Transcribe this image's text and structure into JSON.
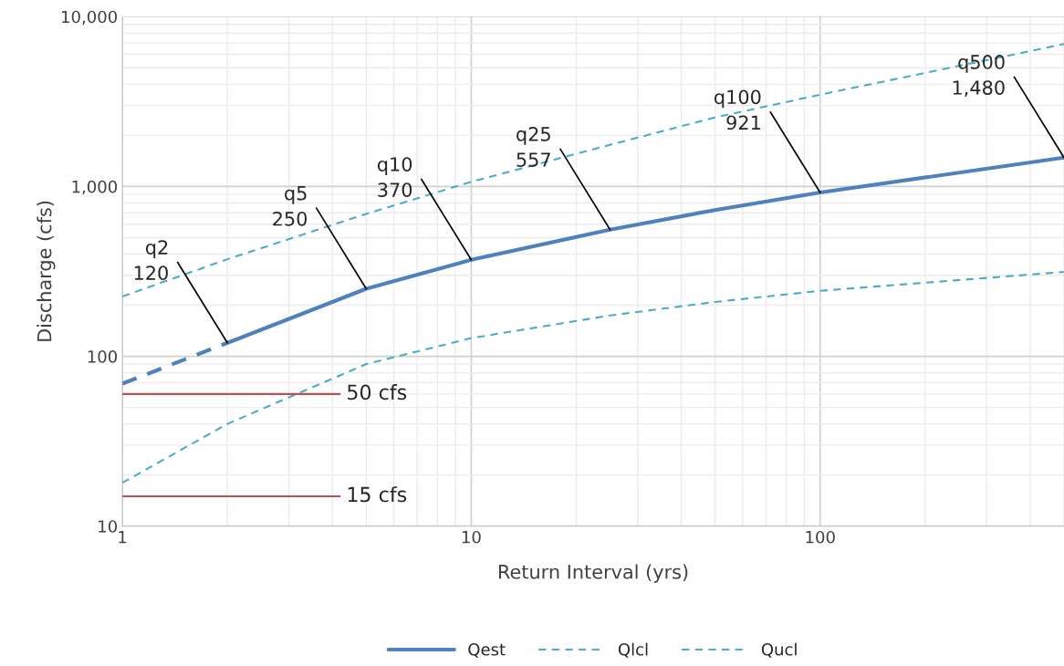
{
  "chart_data": {
    "type": "line",
    "xlabel": "Return Interval (yrs)",
    "ylabel": "Discharge (cfs)",
    "log": "xy",
    "xlim": [
      1,
      500
    ],
    "xticks": [
      1,
      10,
      100
    ],
    "ylim": [
      10,
      10000
    ],
    "yticks": [
      10,
      100,
      {
        "value": 1000,
        "label": "1,000"
      },
      {
        "value": 10000,
        "label": "10,000"
      }
    ],
    "grid": true,
    "legend": "bottom",
    "series": [
      {
        "name": "Qest",
        "color": "#4f81bd",
        "line_style": "solid",
        "x": [
          2,
          5,
          10,
          25,
          50,
          100,
          500
        ],
        "values": [
          120,
          250,
          370,
          557,
          727,
          921,
          1480
        ]
      },
      {
        "color": "#4f81bd",
        "line_style": "dashed",
        "x": [
          1,
          2
        ],
        "values": [
          69,
          120
        ]
      },
      {
        "name": "Qlcl",
        "color": "#4bacc6",
        "line_style": "dashed",
        "x": [
          1,
          2,
          5,
          10,
          25,
          50,
          100,
          500
        ],
        "values": [
          18,
          40,
          90,
          128,
          174,
          209,
          243,
          314
        ]
      },
      {
        "name": "Qucl",
        "color": "#4bacc6",
        "line_style": "dashed",
        "x": [
          1,
          2,
          5,
          10,
          25,
          50,
          100,
          500
        ],
        "values": [
          225,
          373,
          690,
          1065,
          1760,
          2550,
          3470,
          6900
        ]
      },
      {
        "name": "50 cfs",
        "color": "#c0504d",
        "line_style": "solid",
        "x": [
          1,
          4.2
        ],
        "values": [
          60,
          60
        ]
      },
      {
        "name": "15 cfs",
        "color": "#c0504d",
        "line_style": "solid",
        "x": [
          1,
          4.2
        ],
        "values": [
          15,
          15
        ]
      }
    ],
    "annotations": [
      {
        "text": "q2\n120",
        "x": 2,
        "y": 120
      },
      {
        "text": "q5\n250",
        "x": 5,
        "y": 250
      },
      {
        "text": "q10\n370",
        "x": 10,
        "y": 370
      },
      {
        "text": "q25\n557",
        "x": 25,
        "y": 557
      },
      {
        "text": "q100\n921",
        "x": 100,
        "y": 921
      },
      {
        "text": "q500\n1,480",
        "x": 500,
        "y": 1480
      }
    ]
  }
}
